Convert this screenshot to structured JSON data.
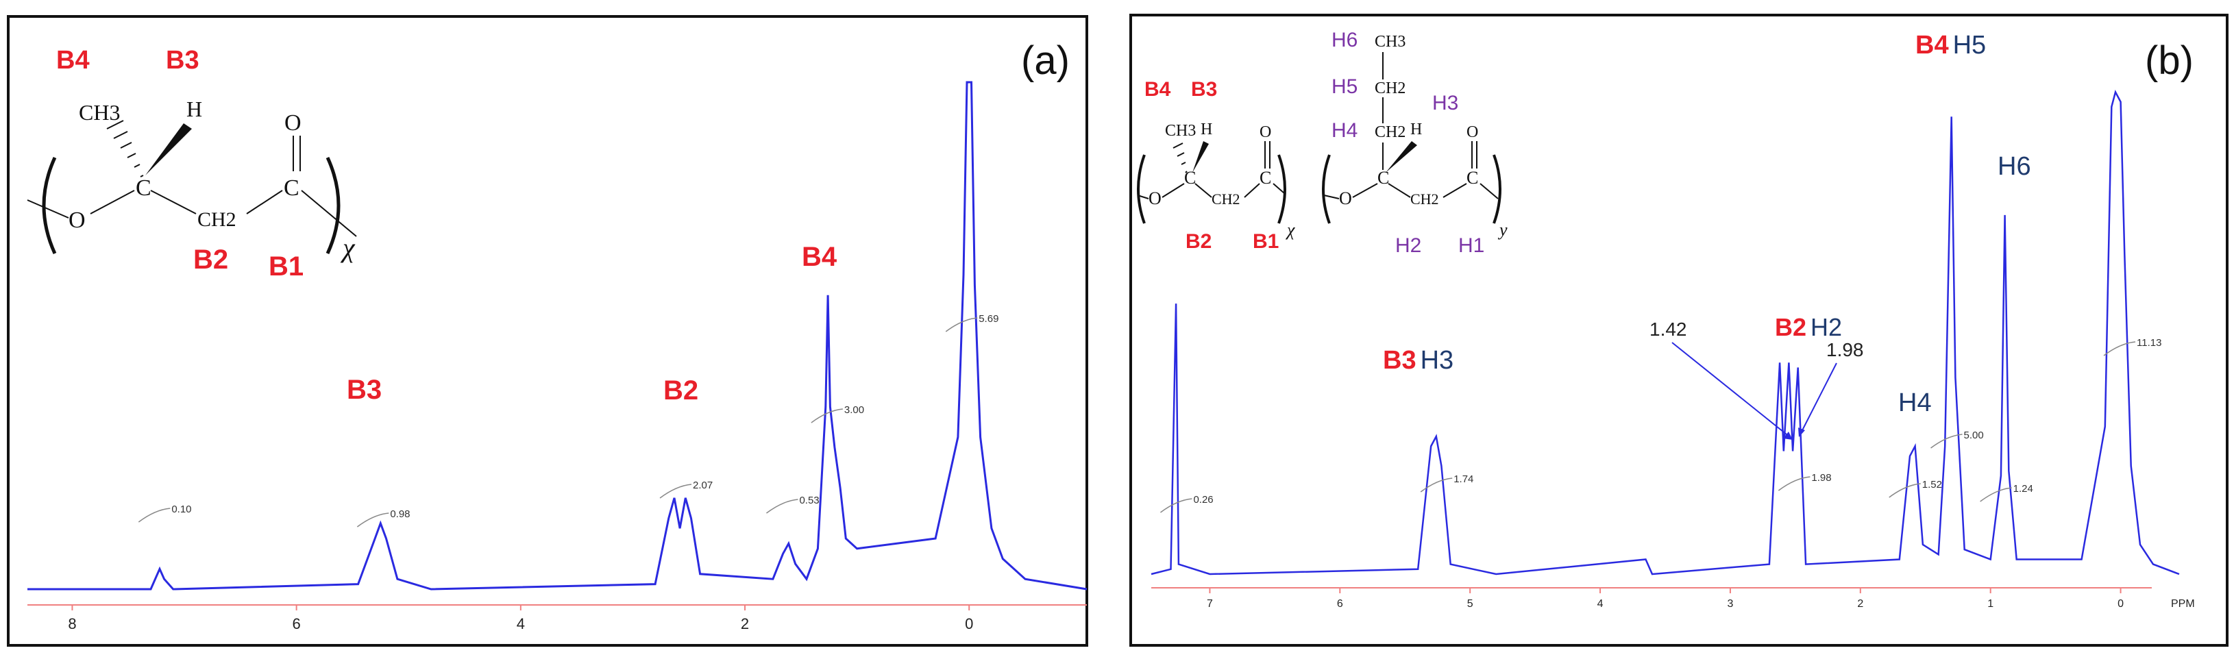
{
  "colors": {
    "spectrum": "#2a2ae0",
    "baseline": "#f08080",
    "label_red": "#e8202a",
    "label_navy": "#1f3b6e",
    "label_purple": "#7b35a6"
  },
  "chart_data": [
    {
      "type": "line",
      "panel": "(a)",
      "x_ticks": [
        "8",
        "6",
        "4",
        "2",
        "0"
      ],
      "xlim": [
        8.4,
        -1.05
      ],
      "series": [
        {
          "values": [
            [
              8.4,
              0
            ],
            [
              7.3,
              0
            ],
            [
              7.22,
              0.04
            ],
            [
              7.18,
              0.02
            ],
            [
              7.1,
              0
            ],
            [
              5.45,
              0.01
            ],
            [
              5.3,
              0.1
            ],
            [
              5.25,
              0.13
            ],
            [
              5.2,
              0.1
            ],
            [
              5.1,
              0.02
            ],
            [
              4.8,
              0
            ],
            [
              2.8,
              0.01
            ],
            [
              2.68,
              0.14
            ],
            [
              2.63,
              0.18
            ],
            [
              2.58,
              0.12
            ],
            [
              2.53,
              0.18
            ],
            [
              2.48,
              0.14
            ],
            [
              2.4,
              0.03
            ],
            [
              1.75,
              0.02
            ],
            [
              1.66,
              0.07
            ],
            [
              1.61,
              0.09
            ],
            [
              1.55,
              0.05
            ],
            [
              1.45,
              0.02
            ],
            [
              1.35,
              0.08
            ],
            [
              1.28,
              0.36
            ],
            [
              1.26,
              0.58
            ],
            [
              1.24,
              0.36
            ],
            [
              1.2,
              0.28
            ],
            [
              1.15,
              0.2
            ],
            [
              1.1,
              0.1
            ],
            [
              1.0,
              0.08
            ],
            [
              0.3,
              0.1
            ],
            [
              0.1,
              0.3
            ],
            [
              0.05,
              0.62
            ],
            [
              0.02,
              1
            ],
            [
              0.0,
              1
            ],
            [
              -0.02,
              1
            ],
            [
              -0.05,
              0.6
            ],
            [
              -0.1,
              0.3
            ],
            [
              -0.2,
              0.12
            ],
            [
              -0.3,
              0.06
            ],
            [
              -0.5,
              0.02
            ],
            [
              -1.05,
              0
            ]
          ]
        }
      ],
      "integrals": [
        "0.10",
        "0.98",
        "2.07",
        "0.53",
        "3.00",
        "5.69"
      ],
      "peak_labels": [
        "B3",
        "B2",
        "B4"
      ],
      "structure": {
        "atom_labels": [
          "B4",
          "B3",
          "B2",
          "B1"
        ],
        "groups": [
          "CH3",
          "H",
          "O",
          "C",
          "CH2",
          "C",
          "O"
        ],
        "repeat": "χ"
      }
    },
    {
      "type": "line",
      "panel": "(b)",
      "x_ticks": [
        "7",
        "6",
        "5",
        "4",
        "3",
        "2",
        "1",
        "0"
      ],
      "x_unit": "PPM",
      "xlim": [
        7.45,
        -0.45
      ],
      "series": [
        {
          "values": [
            [
              7.45,
              0
            ],
            [
              7.3,
              0.01
            ],
            [
              7.26,
              0.55
            ],
            [
              7.24,
              0.02
            ],
            [
              7.0,
              0
            ],
            [
              5.4,
              0.01
            ],
            [
              5.3,
              0.26
            ],
            [
              5.26,
              0.28
            ],
            [
              5.22,
              0.22
            ],
            [
              5.15,
              0.02
            ],
            [
              4.8,
              0
            ],
            [
              3.65,
              0.03
            ],
            [
              3.6,
              0
            ],
            [
              2.7,
              0.02
            ],
            [
              2.62,
              0.43
            ],
            [
              2.59,
              0.25
            ],
            [
              2.55,
              0.43
            ],
            [
              2.52,
              0.25
            ],
            [
              2.48,
              0.42
            ],
            [
              2.42,
              0.02
            ],
            [
              1.7,
              0.03
            ],
            [
              1.62,
              0.24
            ],
            [
              1.58,
              0.26
            ],
            [
              1.52,
              0.06
            ],
            [
              1.4,
              0.04
            ],
            [
              1.35,
              0.26
            ],
            [
              1.3,
              0.93
            ],
            [
              1.27,
              0.4
            ],
            [
              1.2,
              0.05
            ],
            [
              1.0,
              0.03
            ],
            [
              0.92,
              0.2
            ],
            [
              0.89,
              0.73
            ],
            [
              0.86,
              0.21
            ],
            [
              0.8,
              0.03
            ],
            [
              0.3,
              0.03
            ],
            [
              0.12,
              0.3
            ],
            [
              0.07,
              0.95
            ],
            [
              0.04,
              0.98
            ],
            [
              0.0,
              0.96
            ],
            [
              -0.03,
              0.65
            ],
            [
              -0.08,
              0.22
            ],
            [
              -0.15,
              0.06
            ],
            [
              -0.25,
              0.02
            ],
            [
              -0.45,
              0
            ]
          ]
        }
      ],
      "integrals": [
        "0.26",
        "1.74",
        "1.98",
        "1.52",
        "5.00",
        "1.24",
        "11.13"
      ],
      "peak_labels": [
        "B3 H3",
        "B2 H2",
        "H4",
        "B4 H5",
        "H6"
      ],
      "annotations": [
        "1.42",
        "1.98"
      ],
      "structure": {
        "atom_labels": [
          "B4",
          "B3",
          "B2",
          "B1",
          "H6",
          "H5",
          "H4",
          "H3",
          "H2",
          "H1"
        ],
        "groups": [
          "CH3",
          "H",
          "O",
          "C",
          "CH2",
          "C",
          "O",
          "CH3",
          "CH2",
          "CH2",
          "H",
          "O",
          "C",
          "CH2",
          "C",
          "O"
        ],
        "repeats": [
          "χ",
          "y"
        ]
      }
    }
  ]
}
